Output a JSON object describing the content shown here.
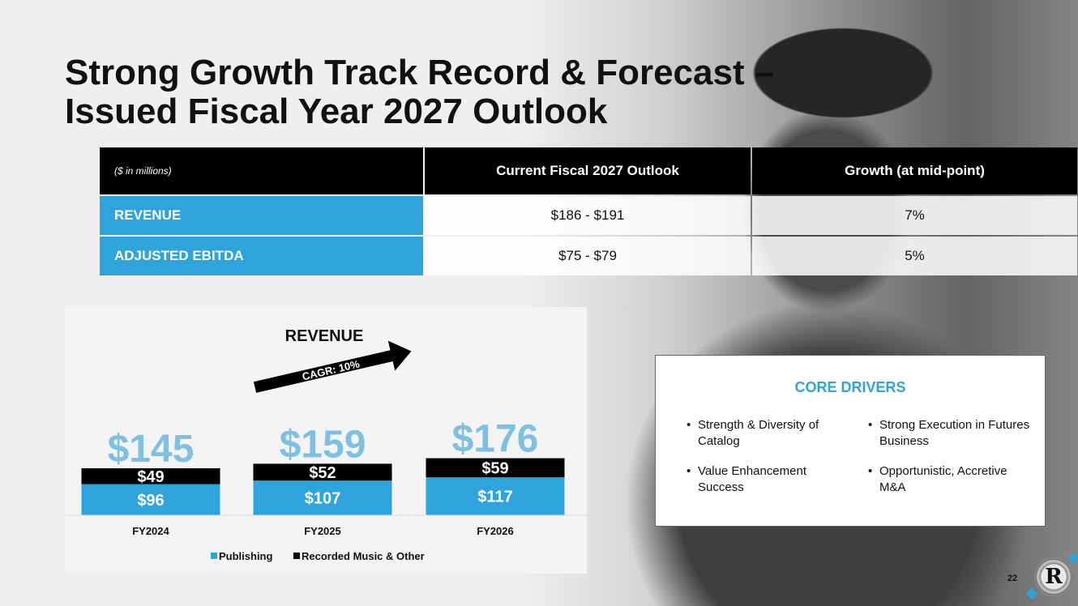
{
  "slide": {
    "title_line1": "Strong Growth Track Record & Forecast –",
    "title_line2": "Issued Fiscal Year 2027 Outlook",
    "page_number": "22",
    "logo_letter": "R"
  },
  "outlook_table": {
    "units_note": "($ in millions)",
    "col_outlook": "Current Fiscal 2027 Outlook",
    "col_growth": "Growth (at mid-point)",
    "rows": [
      {
        "label": "REVENUE",
        "outlook": "$186 - $191",
        "growth": "7%"
      },
      {
        "label": "ADJUSTED EBITDA",
        "outlook": "$75 - $79",
        "growth": "5%"
      }
    ]
  },
  "core_drivers": {
    "title": "CORE DRIVERS",
    "items": [
      "Strength & Diversity of Catalog",
      "Strong Execution in Futures Business",
      "Value Enhancement Success",
      "Opportunistic, Accretive M&A"
    ]
  },
  "chart_data": {
    "type": "bar",
    "stacked": true,
    "title": "REVENUE",
    "annotation": "CAGR: 10%",
    "categories": [
      "FY2024",
      "FY2025",
      "FY2026"
    ],
    "series": [
      {
        "name": "Publishing",
        "values": [
          96,
          107,
          117
        ],
        "labels": [
          "$96",
          "$107",
          "$117"
        ],
        "color": "#2ea3dc"
      },
      {
        "name": "Recorded Music & Other",
        "values": [
          49,
          52,
          59
        ],
        "labels": [
          "$49",
          "$52",
          "$59"
        ],
        "color": "#000000"
      }
    ],
    "totals": [
      145,
      159,
      176
    ],
    "total_labels": [
      "$145",
      "$159",
      "$176"
    ],
    "total_label_color": "#7fc0e2",
    "legend": "bottom",
    "grid": false
  }
}
